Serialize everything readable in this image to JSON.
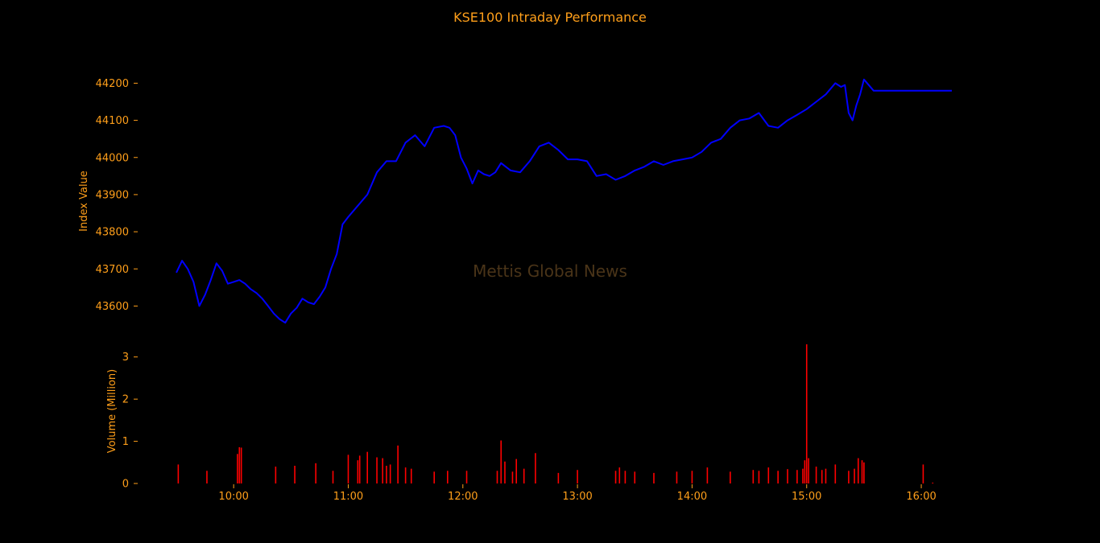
{
  "chart_data": {
    "type": "line",
    "title": "KSE100 Intraday Performance",
    "watermark": "Mettis Global News",
    "colors": {
      "background": "#000000",
      "text": "#ff9f1a",
      "index_line": "#0000ff",
      "volume_bars": "#ff0000",
      "watermark": "#4a3418"
    },
    "x_axis": {
      "ticks": [
        "10:00",
        "11:00",
        "12:00",
        "13:00",
        "14:00",
        "15:00",
        "16:00"
      ],
      "range": [
        "09:30",
        "16:16"
      ]
    },
    "index_panel": {
      "ylabel": "Index Value",
      "yticks": [
        43600,
        43700,
        43800,
        43900,
        44000,
        44100,
        44200
      ],
      "ylim": [
        43550,
        44215
      ],
      "series": {
        "x": [
          "09:30",
          "09:33",
          "09:36",
          "09:39",
          "09:42",
          "09:45",
          "09:48",
          "09:51",
          "09:54",
          "09:57",
          "10:00",
          "10:03",
          "10:06",
          "10:09",
          "10:12",
          "10:15",
          "10:18",
          "10:21",
          "10:24",
          "10:27",
          "10:30",
          "10:33",
          "10:36",
          "10:39",
          "10:42",
          "10:45",
          "10:48",
          "10:51",
          "10:54",
          "10:57",
          "11:00",
          "11:05",
          "11:10",
          "11:15",
          "11:20",
          "11:25",
          "11:30",
          "11:35",
          "11:40",
          "11:45",
          "11:50",
          "11:53",
          "11:56",
          "11:59",
          "12:02",
          "12:05",
          "12:08",
          "12:11",
          "12:14",
          "12:17",
          "12:20",
          "12:25",
          "12:30",
          "12:35",
          "12:40",
          "12:45",
          "12:50",
          "12:55",
          "13:00",
          "13:05",
          "13:10",
          "13:15",
          "13:20",
          "13:25",
          "13:30",
          "13:35",
          "13:40",
          "13:45",
          "13:50",
          "13:55",
          "14:00",
          "14:05",
          "14:10",
          "14:15",
          "14:20",
          "14:25",
          "14:30",
          "14:35",
          "14:40",
          "14:45",
          "14:50",
          "14:55",
          "15:00",
          "15:05",
          "15:10",
          "15:15",
          "15:18",
          "15:20",
          "15:22",
          "15:24",
          "15:26",
          "15:28",
          "15:30",
          "15:35",
          "15:40",
          "15:45",
          "15:50",
          "15:55",
          "16:00",
          "16:05",
          "16:10",
          "16:16"
        ],
        "values": [
          43690,
          43722,
          43700,
          43665,
          43600,
          43630,
          43670,
          43715,
          43695,
          43660,
          43665,
          43670,
          43660,
          43645,
          43635,
          43620,
          43600,
          43580,
          43565,
          43555,
          43580,
          43595,
          43620,
          43610,
          43605,
          43625,
          43650,
          43700,
          43740,
          43820,
          43840,
          43870,
          43900,
          43960,
          43990,
          43990,
          44040,
          44060,
          44030,
          44080,
          44085,
          44080,
          44060,
          44000,
          43970,
          43930,
          43965,
          43955,
          43950,
          43960,
          43985,
          43965,
          43960,
          43990,
          44030,
          44040,
          44020,
          43995,
          43995,
          43990,
          43950,
          43955,
          43940,
          43950,
          43965,
          43975,
          43990,
          43980,
          43990,
          43995,
          44000,
          44015,
          44040,
          44050,
          44080,
          44100,
          44105,
          44120,
          44085,
          44080,
          44100,
          44115,
          44130,
          44150,
          44170,
          44200,
          44190,
          44195,
          44120,
          44100,
          44140,
          44170,
          44210,
          44180,
          44180,
          44180,
          44180,
          44180,
          44180,
          44180,
          44180,
          44180
        ]
      }
    },
    "volume_panel": {
      "ylabel": "Volume (Million)",
      "yticks": [
        0,
        1,
        2,
        3
      ],
      "ylim": [
        0,
        3.3
      ],
      "spikes": {
        "x": [
          "09:31",
          "09:46",
          "10:02",
          "10:03",
          "10:04",
          "10:22",
          "10:32",
          "10:43",
          "10:52",
          "11:00",
          "11:05",
          "11:06",
          "11:10",
          "11:15",
          "11:18",
          "11:20",
          "11:22",
          "11:26",
          "11:30",
          "11:33",
          "11:45",
          "11:52",
          "12:02",
          "12:18",
          "12:20",
          "12:22",
          "12:26",
          "12:28",
          "12:32",
          "12:38",
          "12:50",
          "13:00",
          "13:20",
          "13:22",
          "13:25",
          "13:30",
          "13:40",
          "13:52",
          "14:00",
          "14:08",
          "14:20",
          "14:32",
          "14:35",
          "14:40",
          "14:45",
          "14:50",
          "14:55",
          "14:58",
          "14:59",
          "15:00",
          "15:01",
          "15:05",
          "15:08",
          "15:10",
          "15:15",
          "15:22",
          "15:25",
          "15:27",
          "15:29",
          "15:30",
          "16:01",
          "16:06"
        ],
        "values": [
          0.45,
          0.3,
          0.7,
          0.86,
          0.85,
          0.4,
          0.42,
          0.48,
          0.3,
          0.68,
          0.55,
          0.66,
          0.75,
          0.62,
          0.6,
          0.42,
          0.45,
          0.9,
          0.38,
          0.35,
          0.28,
          0.3,
          0.3,
          0.3,
          1.02,
          0.52,
          0.28,
          0.58,
          0.35,
          0.72,
          0.25,
          0.32,
          0.3,
          0.38,
          0.3,
          0.28,
          0.25,
          0.28,
          0.3,
          0.38,
          0.28,
          0.32,
          0.3,
          0.38,
          0.3,
          0.34,
          0.32,
          0.35,
          0.55,
          3.3,
          0.6,
          0.4,
          0.32,
          0.35,
          0.45,
          0.3,
          0.35,
          0.6,
          0.55,
          0.5,
          0.45,
          0.02
        ]
      }
    }
  }
}
